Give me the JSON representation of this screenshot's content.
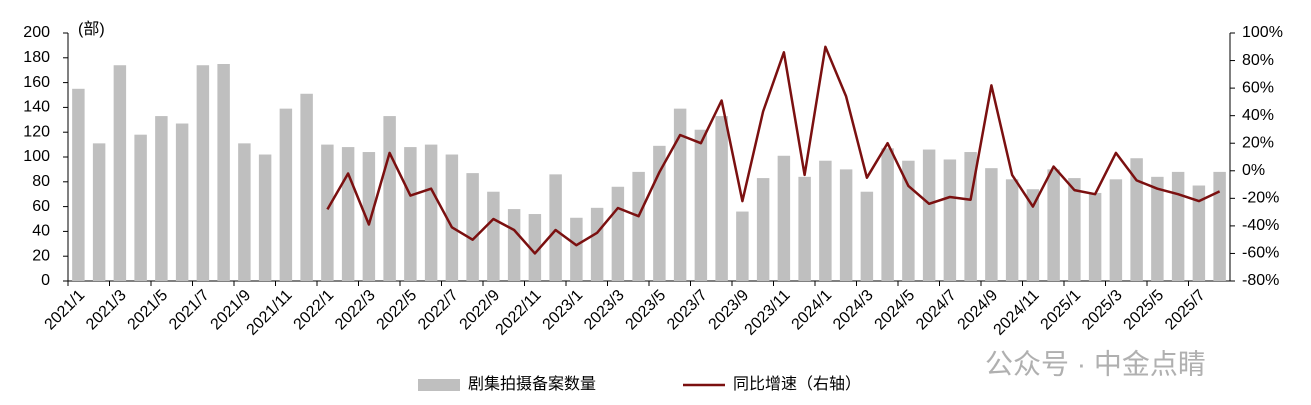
{
  "chart_data": {
    "type": "bar",
    "y_label": "(部)",
    "watermark": "公众号 · 中金点睛",
    "categories": [
      "2021/1",
      null,
      "2021/3",
      null,
      "2021/5",
      null,
      "2021/7",
      null,
      "2021/9",
      null,
      "2021/11",
      null,
      "2022/1",
      null,
      "2022/3",
      null,
      "2022/5",
      null,
      "2022/7",
      null,
      "2022/9",
      null,
      "2022/11",
      null,
      "2023/1",
      null,
      "2023/3",
      null,
      "2023/5",
      null,
      "2023/7",
      null,
      "2023/9",
      null,
      "2023/11",
      null,
      "2024/1",
      null,
      "2024/3",
      null,
      "2024/5",
      null,
      "2024/7",
      null,
      "2024/9",
      null,
      "2024/11",
      null,
      "2025/1",
      null,
      "2025/3",
      null,
      "2025/5",
      null,
      "2025/7",
      null
    ],
    "series": [
      {
        "name": "剧集拍摄备案数量",
        "type": "bar",
        "color": "#bfbfbf",
        "values": [
          155,
          111,
          174,
          118,
          133,
          127,
          174,
          175,
          111,
          102,
          139,
          151,
          110,
          108,
          104,
          133,
          108,
          110,
          102,
          87,
          72,
          58,
          54,
          86,
          51,
          59,
          76,
          88,
          109,
          139,
          122,
          133,
          56,
          83,
          101,
          84,
          97,
          90,
          72,
          107,
          97,
          106,
          98,
          104,
          91,
          82,
          74,
          90,
          83,
          71,
          82,
          99,
          84,
          88,
          77,
          88
        ]
      },
      {
        "name": "同比增速（右轴）",
        "type": "line",
        "axis": "y2",
        "color": "#7b1010",
        "values": [
          null,
          null,
          null,
          null,
          null,
          null,
          null,
          null,
          null,
          null,
          null,
          null,
          -28,
          -2,
          -39,
          13,
          -18,
          -13,
          -41,
          -50,
          -35,
          -43,
          -60,
          -43,
          -54,
          -45,
          -27,
          -33,
          -1,
          26,
          20,
          51,
          -22,
          43,
          86,
          -3,
          90,
          54,
          -5,
          20,
          -11,
          -24,
          -19,
          -21,
          62,
          -3,
          -26,
          3,
          -14,
          -17,
          13,
          -7,
          -13,
          -17,
          -22,
          -15
        ]
      }
    ],
    "ylim": [
      0,
      200
    ],
    "yticks": [
      0,
      20,
      40,
      60,
      80,
      100,
      120,
      140,
      160,
      180,
      200
    ],
    "y2lim": [
      -80,
      100
    ],
    "y2ticks": [
      {
        "value": -80,
        "label": "-80%"
      },
      {
        "value": -60,
        "label": "-60%"
      },
      {
        "value": -40,
        "label": "-40%"
      },
      {
        "value": -20,
        "label": "-20%"
      },
      {
        "value": 0,
        "label": "0%"
      },
      {
        "value": 20,
        "label": "20%"
      },
      {
        "value": 40,
        "label": "40%"
      },
      {
        "value": 60,
        "label": "60%"
      },
      {
        "value": 80,
        "label": "80%"
      },
      {
        "value": 100,
        "label": "100%"
      }
    ],
    "grid": false
  }
}
